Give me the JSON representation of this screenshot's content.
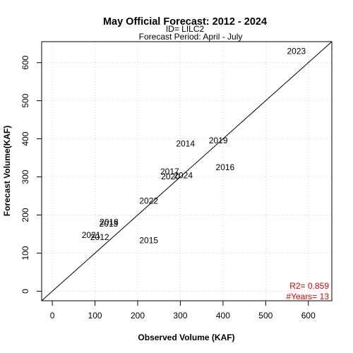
{
  "chart_data": {
    "type": "scatter",
    "title": "May Official Forecast: 2012 - 2024",
    "subtitle_lines": [
      "ID= LILC2",
      "Forecast Period:  April - July"
    ],
    "xlabel": "Observed Volume (KAF)",
    "ylabel": "Forecast Volume(KAF)",
    "xlim": [
      -25,
      655
    ],
    "ylim": [
      -25,
      655
    ],
    "xticks": [
      0,
      100,
      200,
      300,
      400,
      500,
      600
    ],
    "yticks": [
      0,
      100,
      200,
      300,
      400,
      500,
      600
    ],
    "grid": true,
    "reference_line": "1:1",
    "points": [
      {
        "label": "2023",
        "x": 572,
        "y": 628
      },
      {
        "label": "2014",
        "x": 312,
        "y": 386
      },
      {
        "label": "2019",
        "x": 389,
        "y": 394
      },
      {
        "label": "2016",
        "x": 405,
        "y": 324
      },
      {
        "label": "2017",
        "x": 275,
        "y": 313
      },
      {
        "label": "2020",
        "x": 277,
        "y": 300
      },
      {
        "label": "2024",
        "x": 307,
        "y": 302
      },
      {
        "label": "2022",
        "x": 226,
        "y": 236
      },
      {
        "label": "2018",
        "x": 133,
        "y": 180
      },
      {
        "label": "2013",
        "x": 132,
        "y": 175
      },
      {
        "label": "2021",
        "x": 91,
        "y": 146
      },
      {
        "label": "2012",
        "x": 111,
        "y": 140
      },
      {
        "label": "2015",
        "x": 226,
        "y": 132
      }
    ],
    "stats": {
      "r2": "R2=  0.859",
      "years": "#Years=  13",
      "color": "#e00000"
    }
  }
}
